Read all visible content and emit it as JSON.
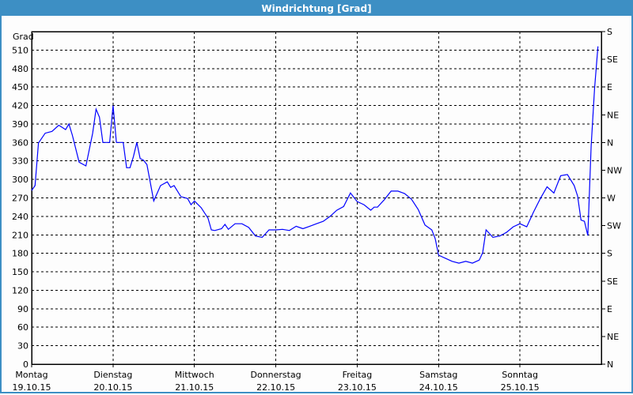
{
  "window": {
    "title": "Windrichtung [Grad]"
  },
  "chart_data": {
    "type": "line",
    "title": "Windrichtung [Grad]",
    "ylabel": "Grad",
    "ylim": [
      0,
      540
    ],
    "yticks": [
      0,
      30,
      60,
      90,
      120,
      150,
      180,
      210,
      240,
      270,
      300,
      330,
      360,
      390,
      420,
      450,
      480,
      510
    ],
    "right_axis": {
      "ticks": [
        0,
        45,
        90,
        135,
        180,
        225,
        270,
        315,
        360,
        405,
        450,
        495,
        540
      ],
      "labels": [
        "N",
        "NE",
        "E",
        "SE",
        "S",
        "SW",
        "W",
        "NW",
        "N",
        "NE",
        "E",
        "SE",
        "S"
      ]
    },
    "xticks": [
      {
        "day": "Montag",
        "date": "19.10.15"
      },
      {
        "day": "Dienstag",
        "date": "20.10.15"
      },
      {
        "day": "Mittwoch",
        "date": "21.10.15"
      },
      {
        "day": "Donnerstag",
        "date": "22.10.15"
      },
      {
        "day": "Freitag",
        "date": "23.10.15"
      },
      {
        "day": "Samstag",
        "date": "24.10.15"
      },
      {
        "day": "Sonntag",
        "date": "25.10.15"
      }
    ],
    "xlim": [
      "19.10.15 00:00",
      "26.10.15 00:00"
    ],
    "grid": true,
    "line_color": "#0000ff",
    "series": [
      {
        "points": [
          [
            "19.10.15 00:00",
            282
          ],
          [
            "19.10.15 01:00",
            290
          ],
          [
            "19.10.15 02:00",
            359
          ],
          [
            "19.10.15 04:00",
            375
          ],
          [
            "19.10.15 06:00",
            378
          ],
          [
            "19.10.15 08:00",
            388
          ],
          [
            "19.10.15 10:00",
            381
          ],
          [
            "19.10.15 11:00",
            390
          ],
          [
            "19.10.15 12:00",
            372
          ],
          [
            "19.10.15 14:00",
            328
          ],
          [
            "19.10.15 16:00",
            322
          ],
          [
            "19.10.15 18:00",
            375
          ],
          [
            "19.10.15 19:00",
            414
          ],
          [
            "19.10.15 20:00",
            401
          ],
          [
            "19.10.15 21:00",
            360
          ],
          [
            "19.10.15 23:00",
            360
          ],
          [
            "20.10.15 00:00",
            420
          ],
          [
            "20.10.15 01:00",
            360
          ],
          [
            "20.10.15 03:00",
            360
          ],
          [
            "20.10.15 04:00",
            319
          ],
          [
            "20.10.15 05:00",
            319
          ],
          [
            "20.10.15 06:00",
            337
          ],
          [
            "20.10.15 07:00",
            360
          ],
          [
            "20.10.15 08:00",
            334
          ],
          [
            "20.10.15 09:00",
            331
          ],
          [
            "20.10.15 10:00",
            324
          ],
          [
            "20.10.15 12:00",
            265
          ],
          [
            "20.10.15 14:00",
            290
          ],
          [
            "20.10.15 16:00",
            296
          ],
          [
            "20.10.15 17:00",
            287
          ],
          [
            "20.10.15 18:00",
            290
          ],
          [
            "20.10.15 20:00",
            272
          ],
          [
            "20.10.15 22:00",
            269
          ],
          [
            "20.10.15 23:00",
            259
          ],
          [
            "21.10.15 00:00",
            265
          ],
          [
            "21.10.15 02:00",
            254
          ],
          [
            "21.10.15 04:00",
            237
          ],
          [
            "21.10.15 05:00",
            218
          ],
          [
            "21.10.15 06:00",
            217
          ],
          [
            "21.10.15 08:00",
            220
          ],
          [
            "21.10.15 09:00",
            227
          ],
          [
            "21.10.15 10:00",
            219
          ],
          [
            "21.10.15 12:00",
            228
          ],
          [
            "21.10.15 14:00",
            228
          ],
          [
            "21.10.15 16:00",
            222
          ],
          [
            "21.10.15 18:00",
            208
          ],
          [
            "21.10.15 20:00",
            206
          ],
          [
            "21.10.15 22:00",
            218
          ],
          [
            "22.10.15 00:00",
            218
          ],
          [
            "22.10.15 02:00",
            219
          ],
          [
            "22.10.15 04:00",
            217
          ],
          [
            "22.10.15 06:00",
            224
          ],
          [
            "22.10.15 08:00",
            220
          ],
          [
            "22.10.15 10:00",
            224
          ],
          [
            "22.10.15 12:00",
            228
          ],
          [
            "22.10.15 14:00",
            232
          ],
          [
            "22.10.15 16:00",
            240
          ],
          [
            "22.10.15 18:00",
            250
          ],
          [
            "22.10.15 20:00",
            256
          ],
          [
            "22.10.15 22:00",
            278
          ],
          [
            "23.10.15 00:00",
            264
          ],
          [
            "23.10.15 02:00",
            259
          ],
          [
            "23.10.15 04:00",
            250
          ],
          [
            "23.10.15 05:00",
            255
          ],
          [
            "23.10.15 06:00",
            255
          ],
          [
            "23.10.15 08:00",
            267
          ],
          [
            "23.10.15 10:00",
            281
          ],
          [
            "23.10.15 12:00",
            281
          ],
          [
            "23.10.15 14:00",
            277
          ],
          [
            "23.10.15 16:00",
            268
          ],
          [
            "23.10.15 18:00",
            251
          ],
          [
            "23.10.15 20:00",
            226
          ],
          [
            "23.10.15 22:00",
            218
          ],
          [
            "23.10.15 23:00",
            204
          ],
          [
            "24.10.15 00:00",
            177
          ],
          [
            "24.10.15 02:00",
            172
          ],
          [
            "24.10.15 04:00",
            167
          ],
          [
            "24.10.15 06:00",
            164
          ],
          [
            "24.10.15 08:00",
            167
          ],
          [
            "24.10.15 10:00",
            164
          ],
          [
            "24.10.15 12:00",
            169
          ],
          [
            "24.10.15 13:00",
            181
          ],
          [
            "24.10.15 14:00",
            218
          ],
          [
            "24.10.15 16:00",
            206
          ],
          [
            "24.10.15 18:00",
            208
          ],
          [
            "24.10.15 20:00",
            214
          ],
          [
            "24.10.15 22:00",
            223
          ],
          [
            "25.10.15 00:00",
            228
          ],
          [
            "25.10.15 02:00",
            223
          ],
          [
            "25.10.15 04:00",
            247
          ],
          [
            "25.10.15 06:00",
            269
          ],
          [
            "25.10.15 08:00",
            288
          ],
          [
            "25.10.15 10:00",
            278
          ],
          [
            "25.10.15 12:00",
            306
          ],
          [
            "25.10.15 14:00",
            308
          ],
          [
            "25.10.15 16:00",
            290
          ],
          [
            "25.10.15 17:00",
            273
          ],
          [
            "25.10.15 18:00",
            234
          ],
          [
            "25.10.15 19:00",
            232
          ],
          [
            "25.10.15 20:00",
            209
          ],
          [
            "25.10.15 21:00",
            354
          ],
          [
            "25.10.15 22:00",
            447
          ],
          [
            "25.10.15 23:00",
            516
          ]
        ]
      }
    ]
  }
}
